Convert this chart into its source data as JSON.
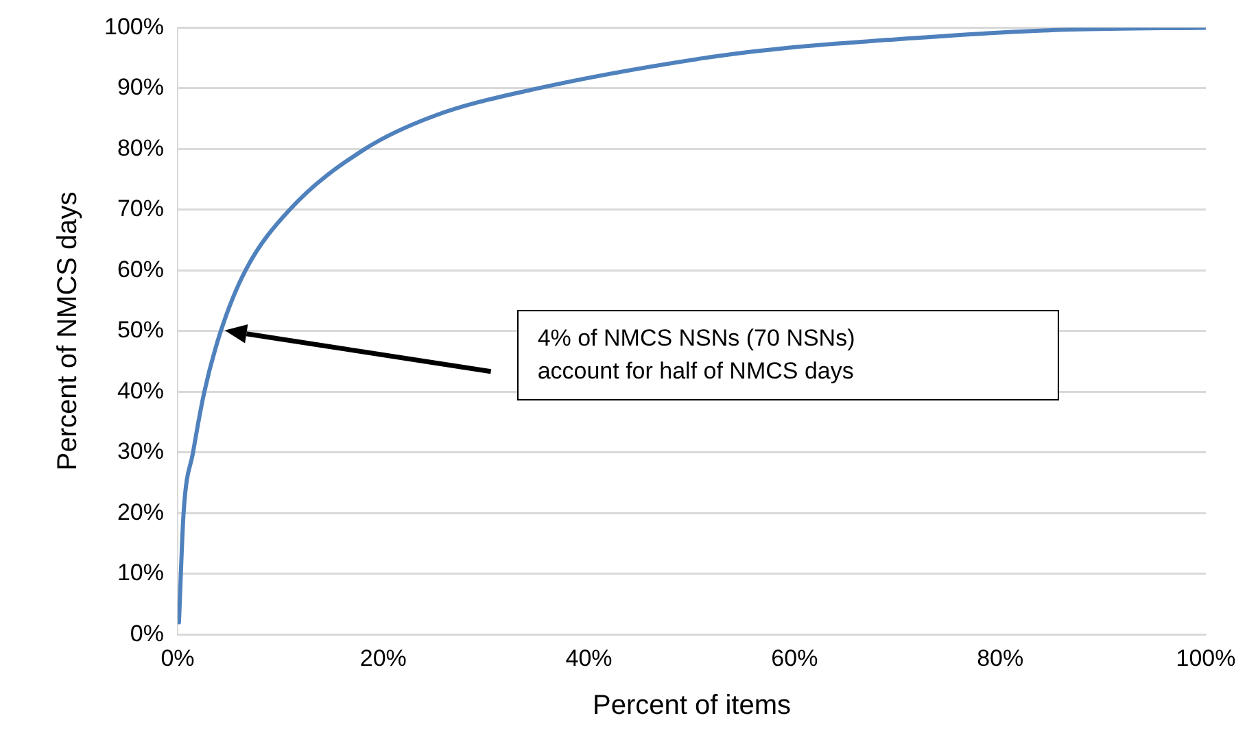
{
  "chart_data": {
    "type": "line",
    "xlabel": "Percent of items",
    "ylabel": "Percent of NMCS days",
    "x": [
      0.13,
      0.58,
      1.5,
      2.6,
      4.2,
      6.6,
      10.9,
      18.2,
      25,
      34.5,
      51.2,
      60,
      69.2,
      80,
      87,
      100
    ],
    "series": [
      {
        "color": "#4f81bd",
        "values": [
          2,
          20,
          30,
          40,
          50,
          60,
          70,
          80,
          85.5,
          89.8,
          95,
          96.8,
          98,
          99.2,
          99.7,
          100
        ]
      }
    ],
    "xlim": [
      0,
      100
    ],
    "xticks": [
      {
        "value": 0,
        "label": "0%"
      },
      {
        "value": 20,
        "label": "20%"
      },
      {
        "value": 40,
        "label": "40%"
      },
      {
        "value": 60,
        "label": "60%"
      },
      {
        "value": 80,
        "label": "80%"
      },
      {
        "value": 100,
        "label": "100%"
      }
    ],
    "ylim": [
      0,
      100
    ],
    "yticks": [
      {
        "value": 0,
        "label": "0%"
      },
      {
        "value": 10,
        "label": "10%"
      },
      {
        "value": 20,
        "label": "20%"
      },
      {
        "value": 30,
        "label": "30%"
      },
      {
        "value": 40,
        "label": "40%"
      },
      {
        "value": 50,
        "label": "50%"
      },
      {
        "value": 60,
        "label": "60%"
      },
      {
        "value": 70,
        "label": "70%"
      },
      {
        "value": 80,
        "label": "80%"
      },
      {
        "value": 90,
        "label": "90%"
      },
      {
        "value": 100,
        "label": "100%"
      }
    ],
    "grid": "y",
    "legend": false,
    "marker": "none",
    "line_style": "solid",
    "annotations": [
      "4% of NMCS NSNs (70 NSNs)\naccount for half of NMCS days"
    ]
  }
}
